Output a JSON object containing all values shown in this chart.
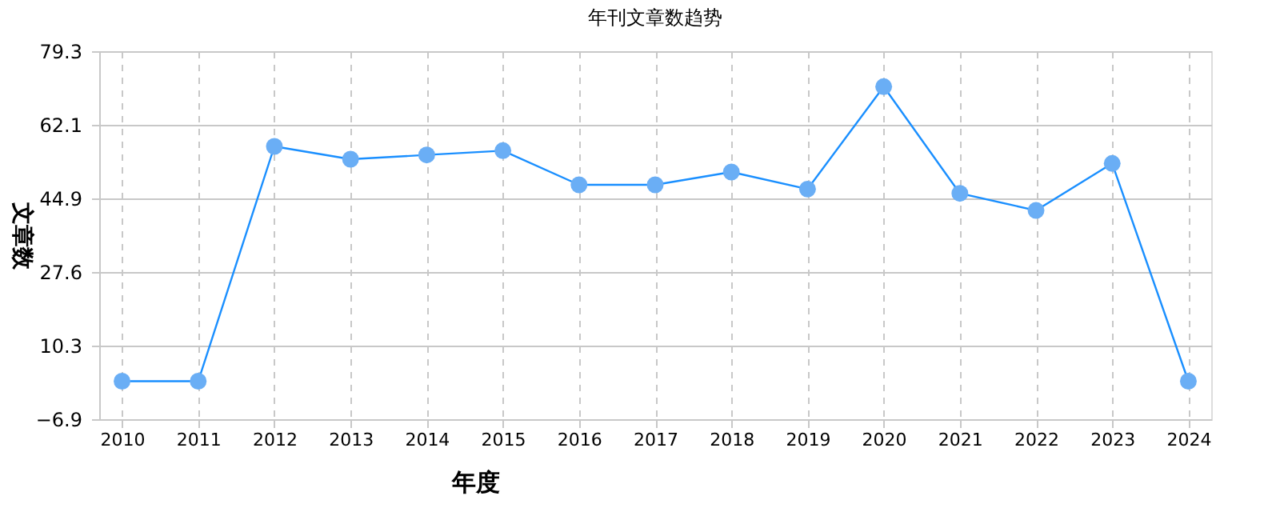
{
  "chart_data": {
    "type": "line",
    "title": "年刊文章数趋势",
    "xlabel": "年度",
    "ylabel": "文章数",
    "categories": [
      "2010",
      "2011",
      "2012",
      "2013",
      "2014",
      "2015",
      "2016",
      "2017",
      "2018",
      "2019",
      "2020",
      "2021",
      "2022",
      "2023",
      "2024"
    ],
    "series": [
      {
        "color": "#1a8fff",
        "values": [
          2,
          2,
          57,
          54,
          55,
          56,
          48,
          48,
          51,
          47,
          71,
          46,
          42,
          53,
          2
        ]
      }
    ],
    "ylim": [
      -6.9,
      79.3
    ],
    "yticks": [
      -6.9,
      10.3,
      27.6,
      44.9,
      62.1,
      79.3
    ],
    "grid": true,
    "marker": "circle",
    "line_style": "solid"
  }
}
